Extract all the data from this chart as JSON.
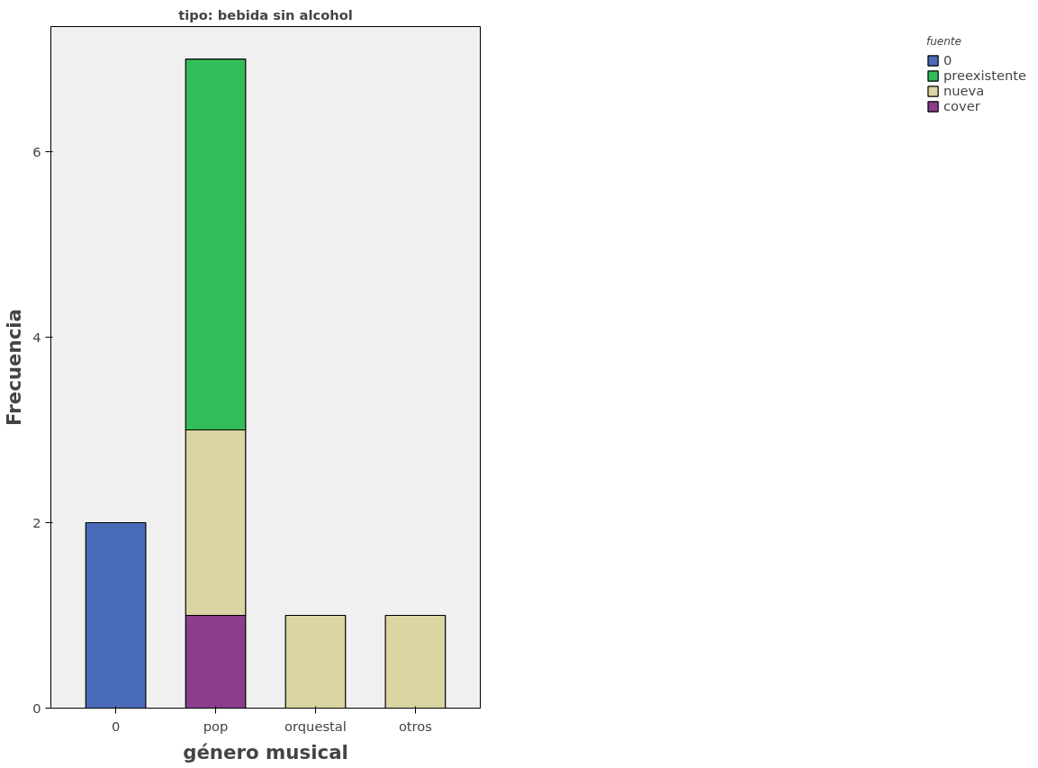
{
  "chart_data": {
    "type": "bar",
    "title": "tipo: bebida sin alcohol",
    "xlabel": "género musical",
    "ylabel": "Frecuencia",
    "legend_title": "fuente",
    "categories": [
      "0",
      "pop",
      "orquestal",
      "otros"
    ],
    "stacked": true,
    "series": [
      {
        "name": "cover",
        "color": "#8a3e8c",
        "values": [
          null,
          1,
          null,
          null
        ]
      },
      {
        "name": "nueva",
        "color": "#dbd4a3",
        "values": [
          null,
          2,
          1,
          1
        ]
      },
      {
        "name": "preexistente",
        "color": "#33bd58",
        "values": [
          null,
          4,
          null,
          null
        ]
      },
      {
        "name": "0",
        "color": "#4a6bb8",
        "values": [
          2,
          null,
          null,
          null
        ]
      }
    ],
    "ylim": [
      0,
      7.35
    ],
    "yticks": [
      0,
      2,
      4,
      6
    ],
    "grid": false,
    "legend": "top right"
  }
}
